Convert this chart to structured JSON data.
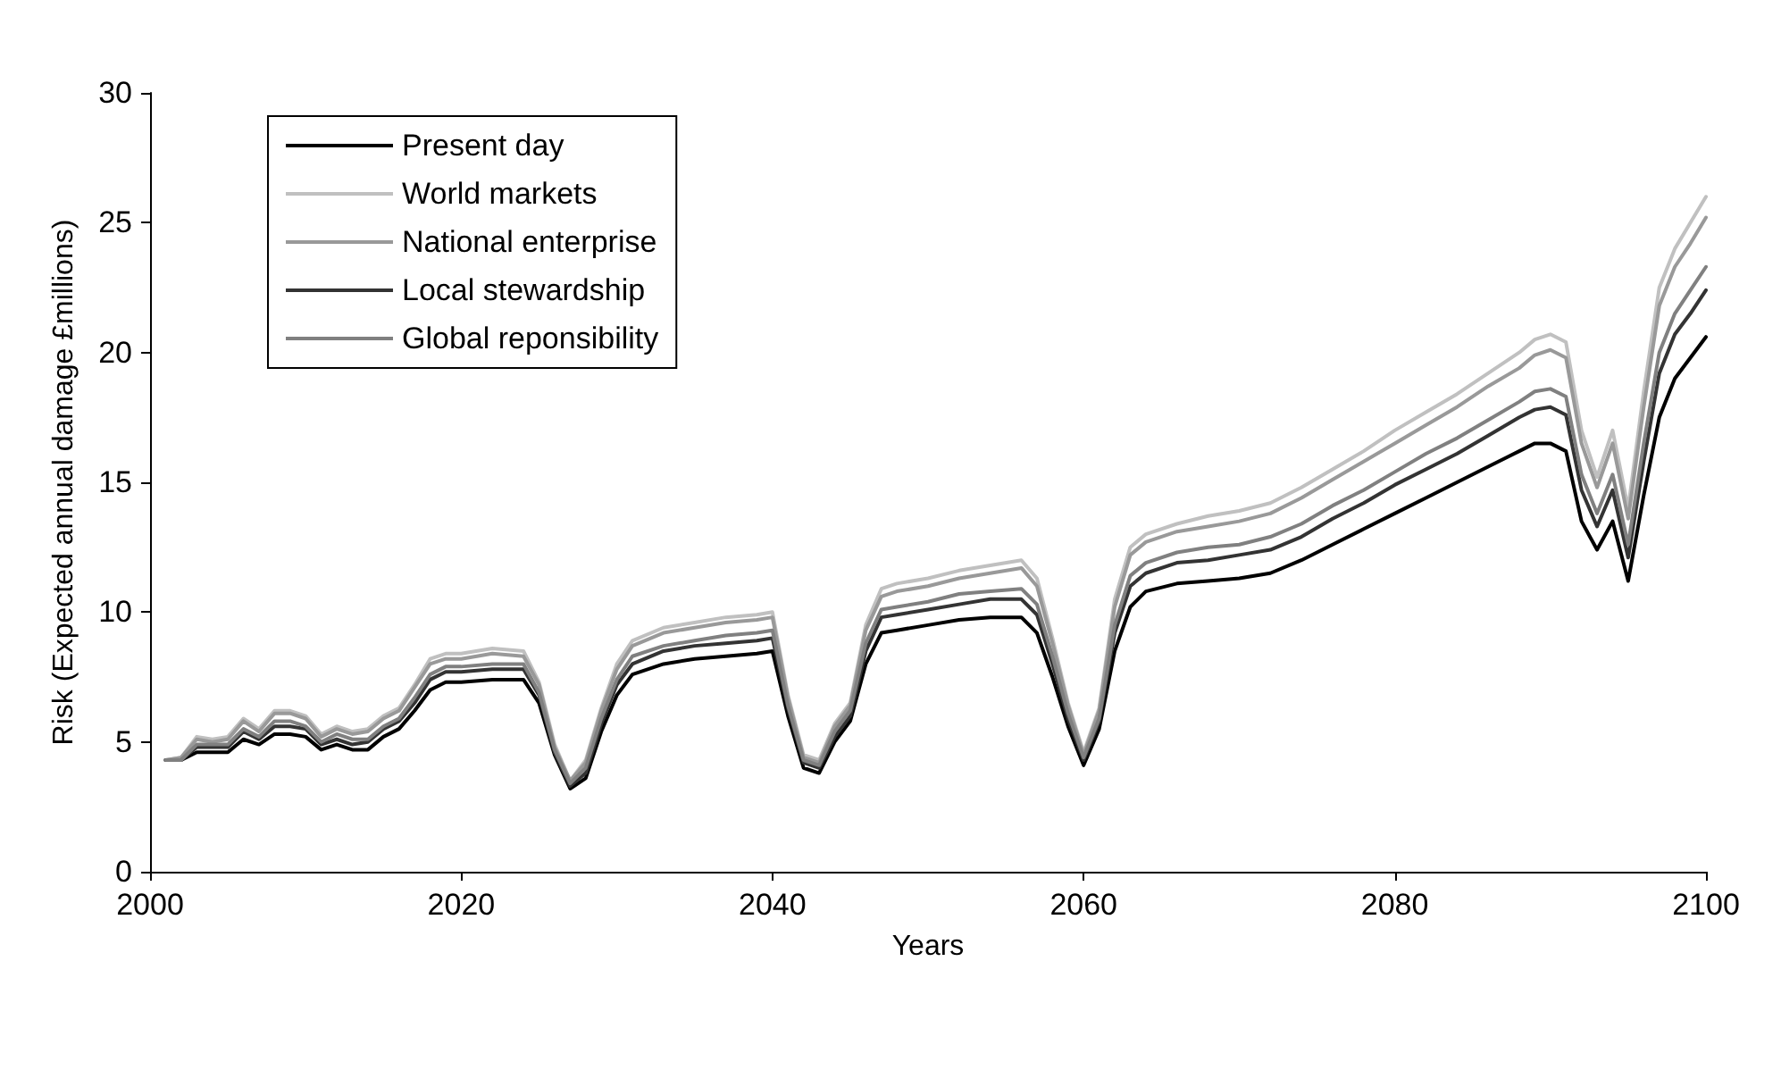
{
  "chart_data": {
    "type": "line",
    "xlabel": "Years",
    "ylabel": "Risk (Expected annual damage £millions)",
    "x": [
      2001,
      2002,
      2003,
      2004,
      2005,
      2006,
      2007,
      2008,
      2009,
      2010,
      2011,
      2012,
      2013,
      2014,
      2015,
      2016,
      2017,
      2018,
      2019,
      2020,
      2022,
      2024,
      2025,
      2026,
      2027,
      2028,
      2029,
      2030,
      2031,
      2033,
      2035,
      2037,
      2039,
      2040,
      2041,
      2042,
      2043,
      2044,
      2045,
      2046,
      2047,
      2048,
      2050,
      2052,
      2054,
      2056,
      2057,
      2058,
      2059,
      2060,
      2061,
      2062,
      2063,
      2064,
      2066,
      2068,
      2070,
      2072,
      2074,
      2076,
      2078,
      2080,
      2082,
      2084,
      2086,
      2088,
      2089,
      2090,
      2091,
      2092,
      2093,
      2094,
      2095,
      2096,
      2097,
      2098,
      2099,
      2100
    ],
    "series": [
      {
        "name": "Present day",
        "color": "#000000",
        "values": [
          4.3,
          4.3,
          4.6,
          4.6,
          4.6,
          5.1,
          4.9,
          5.3,
          5.3,
          5.2,
          4.7,
          4.9,
          4.7,
          4.7,
          5.2,
          5.5,
          6.2,
          7.0,
          7.3,
          7.3,
          7.4,
          7.4,
          6.5,
          4.5,
          3.2,
          3.6,
          5.4,
          6.8,
          7.6,
          8.0,
          8.2,
          8.3,
          8.4,
          8.5,
          6.0,
          4.0,
          3.8,
          5.0,
          5.8,
          8.0,
          9.2,
          9.3,
          9.5,
          9.7,
          9.8,
          9.8,
          9.2,
          7.5,
          5.6,
          4.1,
          5.5,
          8.5,
          10.2,
          10.8,
          11.1,
          11.2,
          11.3,
          11.5,
          12.0,
          12.6,
          13.2,
          13.8,
          14.4,
          15.0,
          15.6,
          16.2,
          16.5,
          16.5,
          16.2,
          13.5,
          12.4,
          13.5,
          11.2,
          14.5,
          17.5,
          19.0,
          19.8,
          20.6
        ]
      },
      {
        "name": "World markets",
        "color": "#c0c0c0",
        "values": [
          4.3,
          4.4,
          5.2,
          5.1,
          5.2,
          5.9,
          5.5,
          6.2,
          6.2,
          6.0,
          5.3,
          5.6,
          5.4,
          5.5,
          6.0,
          6.3,
          7.2,
          8.2,
          8.4,
          8.4,
          8.6,
          8.5,
          7.3,
          4.9,
          3.5,
          4.3,
          6.3,
          8.0,
          8.9,
          9.4,
          9.6,
          9.8,
          9.9,
          10.0,
          6.8,
          4.5,
          4.3,
          5.7,
          6.5,
          9.5,
          10.9,
          11.1,
          11.3,
          11.6,
          11.8,
          12.0,
          11.3,
          9.0,
          6.5,
          4.6,
          6.3,
          10.5,
          12.5,
          13.0,
          13.4,
          13.7,
          13.9,
          14.2,
          14.8,
          15.5,
          16.2,
          17.0,
          17.7,
          18.4,
          19.2,
          20.0,
          20.5,
          20.7,
          20.4,
          17.0,
          15.2,
          17.0,
          14.0,
          18.5,
          22.5,
          24.0,
          25.0,
          26.0
        ]
      },
      {
        "name": "National enterprise",
        "color": "#999999",
        "values": [
          4.3,
          4.4,
          5.1,
          5.0,
          5.1,
          5.8,
          5.4,
          6.1,
          6.1,
          5.9,
          5.2,
          5.5,
          5.3,
          5.4,
          5.9,
          6.2,
          7.1,
          8.0,
          8.2,
          8.2,
          8.4,
          8.3,
          7.2,
          4.8,
          3.5,
          4.2,
          6.2,
          7.8,
          8.7,
          9.2,
          9.4,
          9.6,
          9.7,
          9.8,
          6.7,
          4.4,
          4.2,
          5.6,
          6.4,
          9.3,
          10.6,
          10.8,
          11.0,
          11.3,
          11.5,
          11.7,
          11.0,
          8.8,
          6.4,
          4.5,
          6.2,
          10.2,
          12.2,
          12.7,
          13.1,
          13.3,
          13.5,
          13.8,
          14.4,
          15.1,
          15.8,
          16.5,
          17.2,
          17.9,
          18.7,
          19.4,
          19.9,
          20.1,
          19.8,
          16.5,
          14.8,
          16.5,
          13.6,
          17.9,
          21.8,
          23.3,
          24.2,
          25.2
        ]
      },
      {
        "name": "Local stewardship",
        "color": "#333333",
        "values": [
          4.3,
          4.3,
          4.8,
          4.8,
          4.8,
          5.4,
          5.1,
          5.6,
          5.6,
          5.5,
          4.9,
          5.1,
          4.9,
          5.0,
          5.5,
          5.8,
          6.5,
          7.4,
          7.7,
          7.7,
          7.8,
          7.8,
          6.8,
          4.6,
          3.3,
          3.8,
          5.7,
          7.2,
          8.0,
          8.5,
          8.7,
          8.8,
          8.9,
          9.0,
          6.3,
          4.2,
          4.0,
          5.2,
          6.0,
          8.5,
          9.8,
          9.9,
          10.1,
          10.3,
          10.5,
          10.5,
          9.9,
          8.0,
          5.9,
          4.3,
          5.8,
          9.2,
          11.0,
          11.5,
          11.9,
          12.0,
          12.2,
          12.4,
          12.9,
          13.6,
          14.2,
          14.9,
          15.5,
          16.1,
          16.8,
          17.5,
          17.8,
          17.9,
          17.6,
          14.7,
          13.3,
          14.7,
          12.1,
          15.8,
          19.2,
          20.7,
          21.5,
          22.4
        ]
      },
      {
        "name": "Global reponsibility",
        "color": "#808080",
        "values": [
          4.3,
          4.3,
          4.9,
          4.9,
          4.9,
          5.5,
          5.2,
          5.8,
          5.8,
          5.6,
          5.0,
          5.3,
          5.1,
          5.1,
          5.6,
          5.9,
          6.7,
          7.6,
          7.9,
          7.9,
          8.0,
          8.0,
          6.9,
          4.7,
          3.4,
          4.0,
          5.9,
          7.4,
          8.3,
          8.7,
          8.9,
          9.1,
          9.2,
          9.3,
          6.4,
          4.3,
          4.1,
          5.4,
          6.2,
          8.8,
          10.1,
          10.2,
          10.4,
          10.7,
          10.8,
          10.9,
          10.3,
          8.3,
          6.1,
          4.4,
          5.9,
          9.5,
          11.4,
          11.9,
          12.3,
          12.5,
          12.6,
          12.9,
          13.4,
          14.1,
          14.7,
          15.4,
          16.1,
          16.7,
          17.4,
          18.1,
          18.5,
          18.6,
          18.3,
          15.3,
          13.8,
          15.3,
          12.6,
          16.5,
          20.0,
          21.5,
          22.4,
          23.3
        ]
      }
    ],
    "xlim": [
      2000,
      2100
    ],
    "xticks": [
      2000,
      2020,
      2040,
      2060,
      2080,
      2100
    ],
    "ylim": [
      0,
      30
    ],
    "yticks": [
      0,
      5,
      10,
      15,
      20,
      25,
      30
    ],
    "grid": false,
    "legend": "top left",
    "marker": "none",
    "line_style": "solid"
  }
}
